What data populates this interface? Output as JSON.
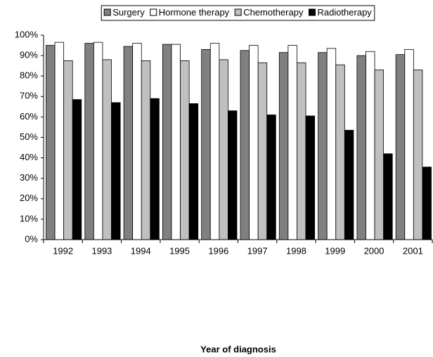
{
  "chart_data": {
    "type": "bar",
    "x_label": "Year of diagnosis",
    "categories": [
      "1992",
      "1993",
      "1994",
      "1995",
      "1996",
      "1997",
      "1998",
      "1999",
      "2000",
      "2001"
    ],
    "series": [
      {
        "name": "Surgery",
        "color": "#808080",
        "values": [
          95,
          96,
          94.5,
          95.5,
          93,
          92.5,
          91.5,
          91.5,
          90,
          90.5
        ]
      },
      {
        "name": "Hormone therapy",
        "color": "#ffffff",
        "values": [
          96.5,
          96.5,
          96,
          95.5,
          96,
          95,
          95,
          93.5,
          92,
          93
        ]
      },
      {
        "name": "Chemotherapy",
        "color": "#c0c0c0",
        "values": [
          87.5,
          88,
          87.5,
          87.5,
          88,
          86.5,
          86.5,
          85.5,
          83,
          83
        ]
      },
      {
        "name": "Radiotherapy",
        "color": "#000000",
        "values": [
          68.5,
          67,
          69,
          66.5,
          63,
          61,
          60.5,
          53.5,
          42,
          35.5
        ]
      }
    ],
    "ylim": [
      0,
      100
    ],
    "yticks": [
      {
        "value": 0,
        "label": "0%"
      },
      {
        "value": 10,
        "label": "10%"
      },
      {
        "value": 20,
        "label": "20%"
      },
      {
        "value": 30,
        "label": "30%"
      },
      {
        "value": 40,
        "label": "40%"
      },
      {
        "value": 50,
        "label": "50%"
      },
      {
        "value": 60,
        "label": "60%"
      },
      {
        "value": 70,
        "label": "70%"
      },
      {
        "value": 80,
        "label": "80%"
      },
      {
        "value": 90,
        "label": "90%"
      },
      {
        "value": 100,
        "label": "100%"
      }
    ],
    "grid": false,
    "legend": "top"
  }
}
